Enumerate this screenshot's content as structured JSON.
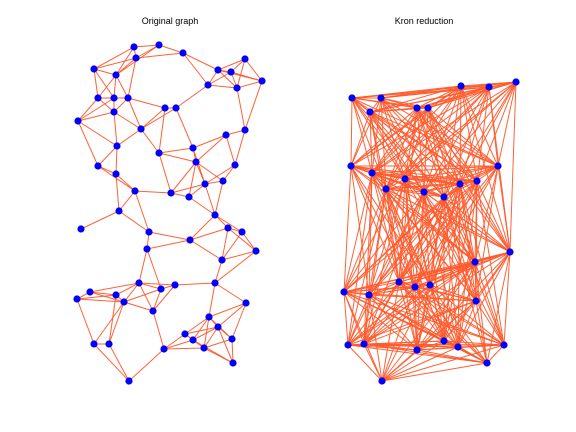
{
  "panels": [
    {
      "id": "original",
      "title": "Original graph",
      "edge_color": "#ff5a2b",
      "node_color": "#0000ff"
    },
    {
      "id": "kron",
      "title": "Kron reduction",
      "edge_color": "#ff5a2b",
      "node_color": "#0000ff"
    }
  ]
}
